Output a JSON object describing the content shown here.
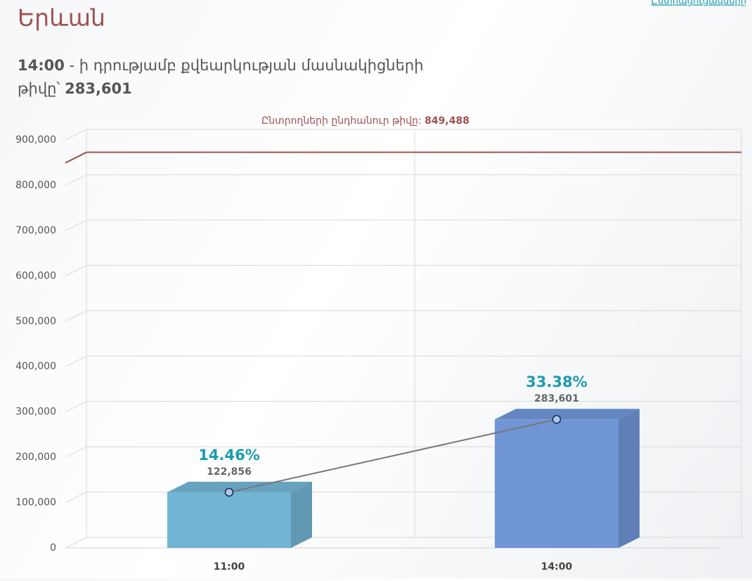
{
  "header": {
    "link": "Ընտրացուցակները",
    "title": "Երևան",
    "subtitle_time": "14:00",
    "subtitle_text": " - ի դրությամբ քվեարկության մասնակիցների",
    "subtitle_text2": "թիվը՝ ",
    "subtitle_count": "283,601"
  },
  "chart_data": {
    "type": "bar",
    "categories": [
      "11:00",
      "14:00"
    ],
    "values": [
      122856,
      283601
    ],
    "value_labels": [
      "122,856",
      "283,601"
    ],
    "percent_labels": [
      "14.46%",
      "33.38%"
    ],
    "colors": [
      "#72b4d4",
      "#7096d6"
    ],
    "line_color": "#777777",
    "reference": {
      "label": "Ընտրողների ընդհանուր թիվը: ",
      "value": 849488,
      "value_label": "849,488",
      "color": "#a0524f"
    },
    "ylim": [
      0,
      900000
    ],
    "yticks": [
      0,
      {
        "value": 100000,
        "label": "100,000"
      },
      {
        "value": 200000,
        "label": "200,000"
      },
      {
        "value": 300000,
        "label": "300,000"
      },
      {
        "value": 400000,
        "label": "400,000"
      },
      {
        "value": 500000,
        "label": "500,000"
      },
      {
        "value": 600000,
        "label": "600,000"
      },
      {
        "value": 700000,
        "label": "700,000"
      },
      {
        "value": 800000,
        "label": "800,000"
      },
      {
        "value": 900000,
        "label": "900,000"
      }
    ],
    "grid": true
  }
}
